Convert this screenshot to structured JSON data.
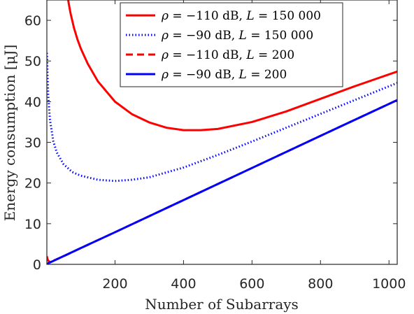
{
  "chart_data": {
    "type": "line",
    "title": "",
    "xlabel": "Number of Subarrays",
    "ylabel": "Energy consumption [μJ]",
    "xlim": [
      1,
      1024
    ],
    "ylim": [
      0,
      65
    ],
    "xticks": [
      200,
      400,
      600,
      800,
      1000
    ],
    "yticks": [
      0,
      10,
      20,
      30,
      40,
      50,
      60
    ],
    "grid": false,
    "legend_position": "top-right",
    "series": [
      {
        "name": "ρ = −110 dB, L = 150 000",
        "legend": {
          "rho": "−110",
          "L": "150 000"
        },
        "color": "#ff0000",
        "style": "solid",
        "x": [
          60,
          65,
          70,
          80,
          90,
          100,
          120,
          150,
          200,
          250,
          300,
          350,
          400,
          450,
          500,
          600,
          700,
          800,
          900,
          1024
        ],
        "y": [
          66.7,
          64.1,
          61.8,
          58.2,
          55.4,
          53.1,
          49.4,
          45.0,
          40.0,
          36.9,
          34.9,
          33.6,
          33.0,
          33.0,
          33.3,
          35.0,
          37.6,
          40.7,
          43.8,
          47.4
        ]
      },
      {
        "name": "ρ = −90 dB, L = 150 000",
        "legend": {
          "rho": "−90",
          "L": "150 000"
        },
        "color": "#0000ff",
        "style": "dotted",
        "x": [
          1,
          2,
          3,
          5,
          10,
          20,
          30,
          50,
          75,
          100,
          150,
          200,
          250,
          300,
          400,
          500,
          600,
          700,
          800,
          900,
          1024
        ],
        "y": [
          52.0,
          50.0,
          46.5,
          41.5,
          35.6,
          30.2,
          27.5,
          24.6,
          22.7,
          21.8,
          20.8,
          20.5,
          20.8,
          21.4,
          23.8,
          26.9,
          30.2,
          33.6,
          37.0,
          40.4,
          44.6
        ]
      },
      {
        "name": "ρ = −110 dB, L = 200",
        "legend": {
          "rho": "−110",
          "L": "200"
        },
        "color": "#ff0000",
        "style": "dashed",
        "x": [
          1,
          3,
          6,
          10,
          20,
          50,
          100,
          200,
          400,
          600,
          800,
          1024
        ],
        "y": [
          2.0,
          1.2,
          0.8,
          0.6,
          0.9,
          2.0,
          4.0,
          7.9,
          15.8,
          23.7,
          31.6,
          40.4
        ]
      },
      {
        "name": "ρ = −90 dB, L = 200",
        "legend": {
          "rho": "−90",
          "L": "200"
        },
        "color": "#0000ff",
        "style": "solid",
        "x": [
          1,
          100,
          200,
          400,
          600,
          800,
          1024
        ],
        "y": [
          0.1,
          4.0,
          7.9,
          15.8,
          23.7,
          31.6,
          40.4
        ]
      }
    ]
  }
}
